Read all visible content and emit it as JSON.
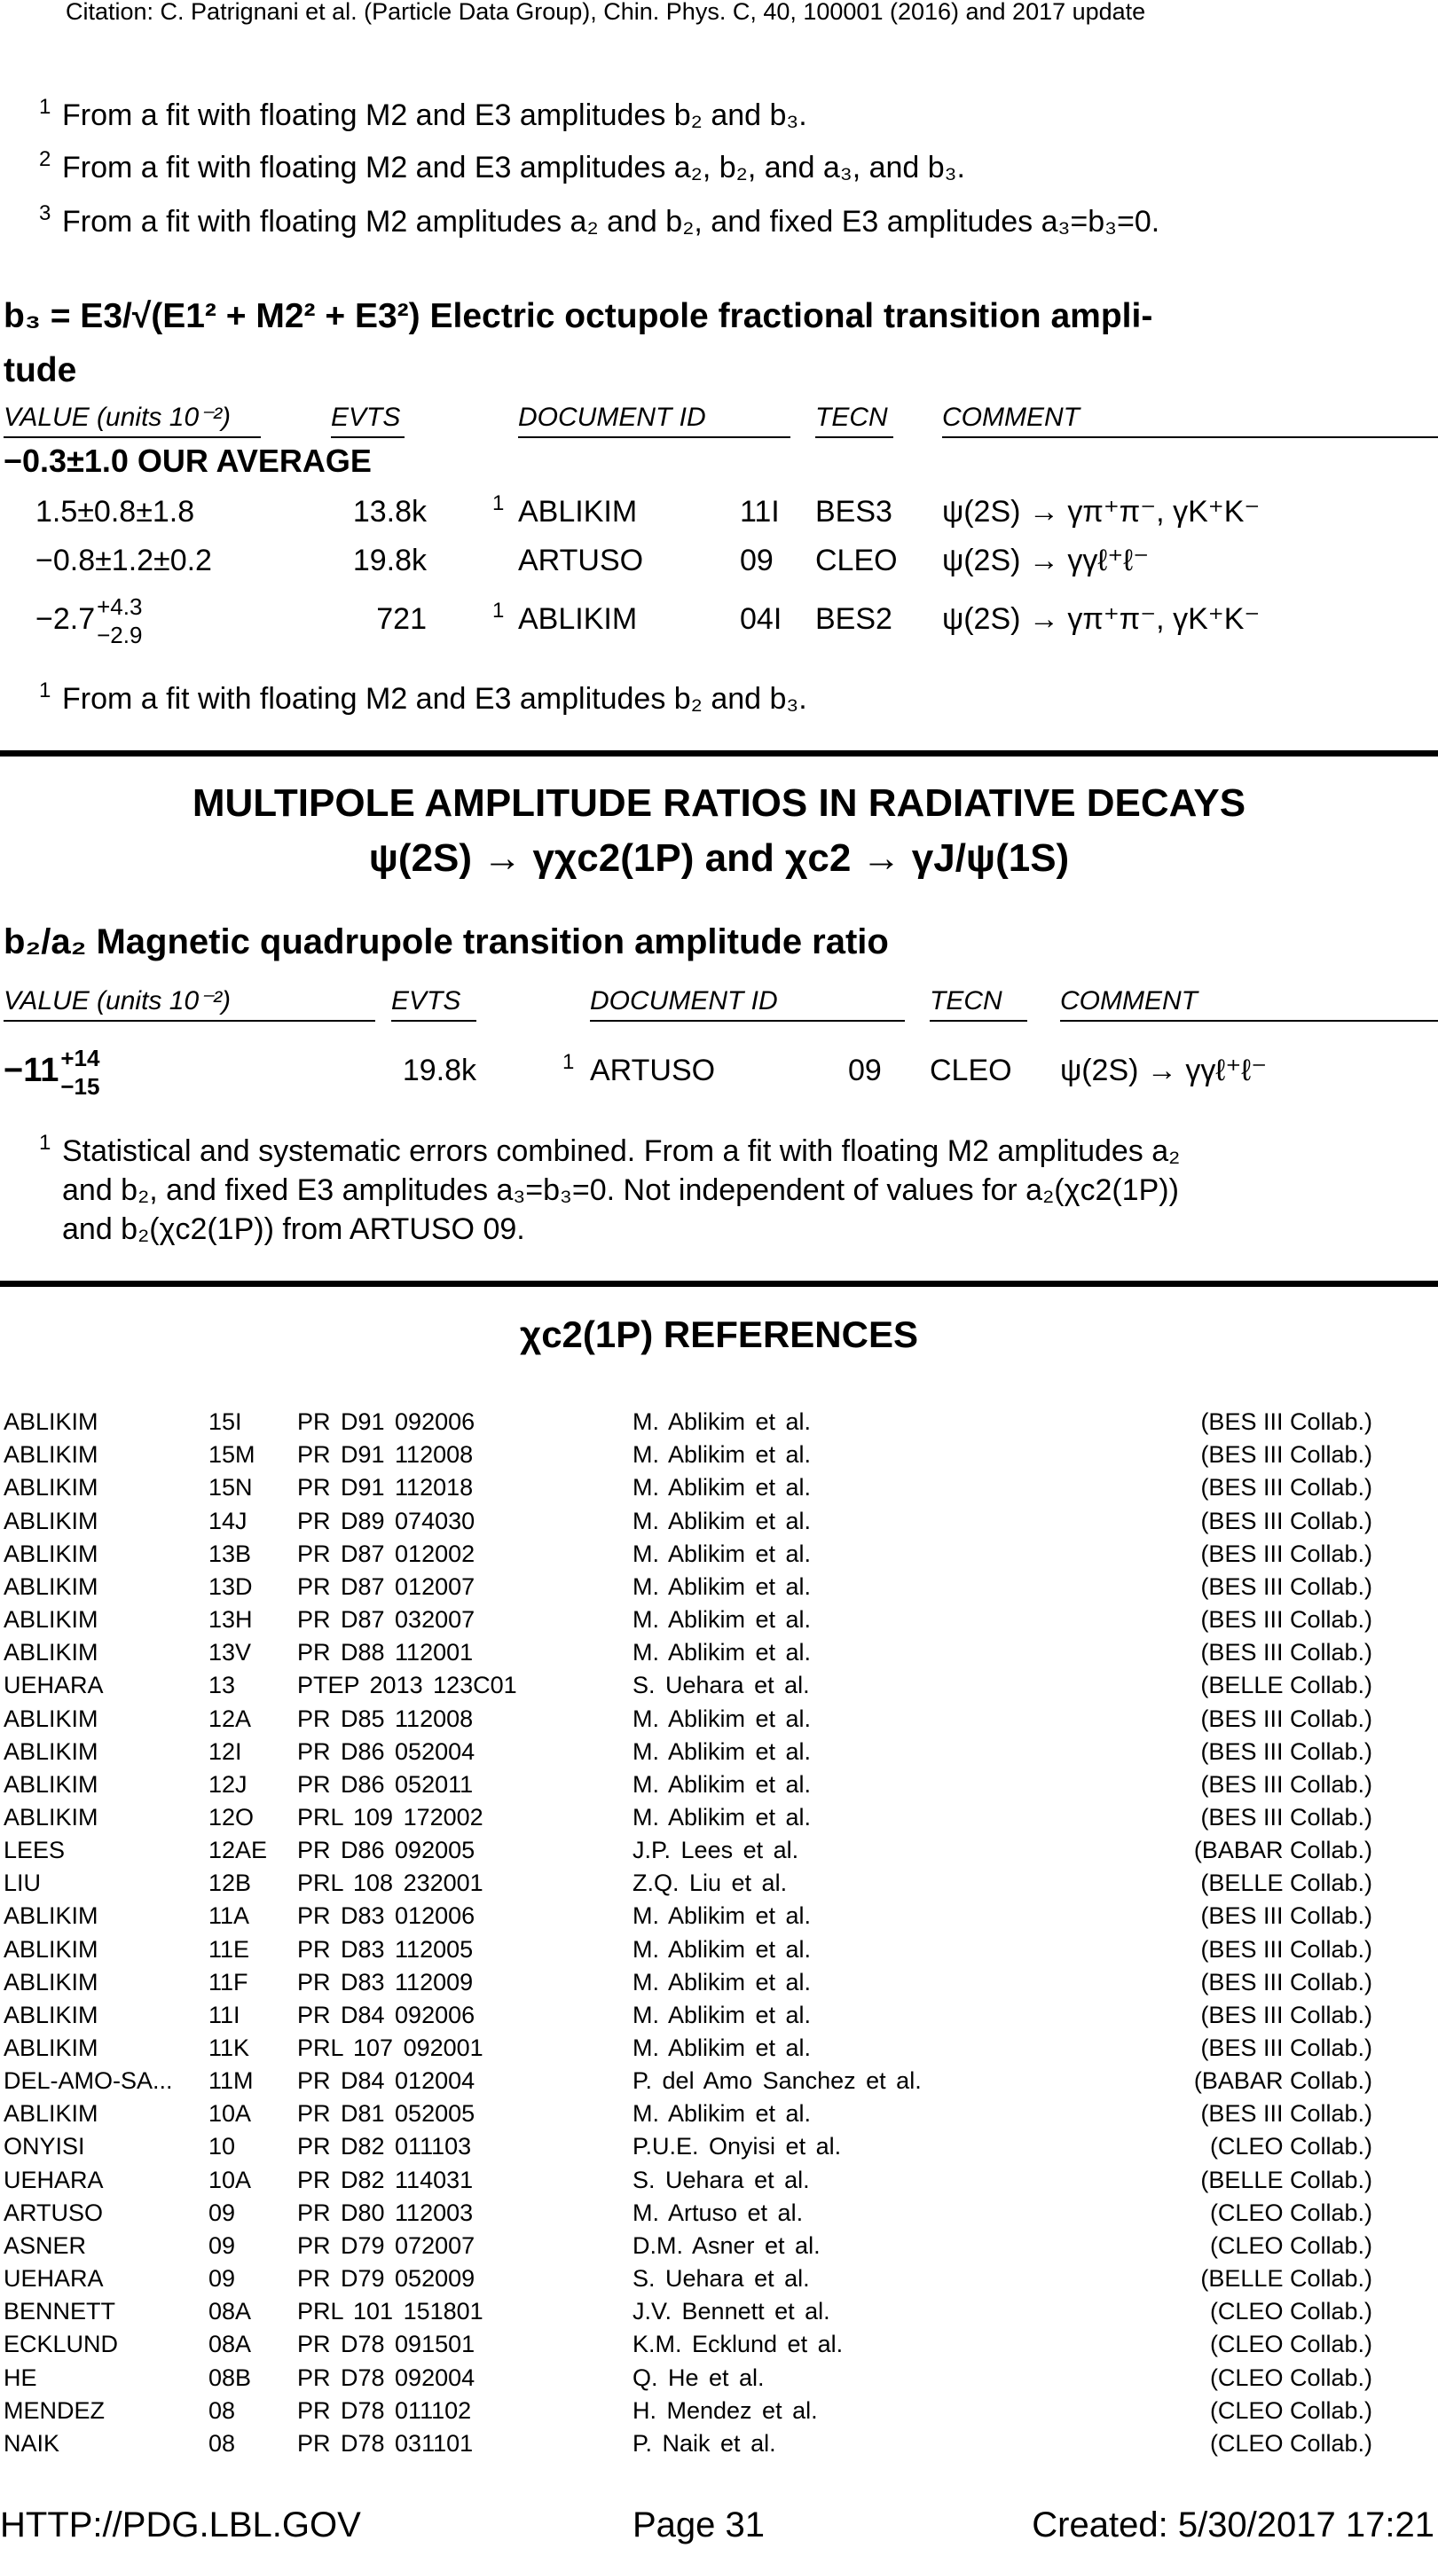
{
  "header": {
    "citation": "Citation: C. Patrignani et al. (Particle Data Group), Chin. Phys. C, 40, 100001 (2016) and 2017 update"
  },
  "top_footnotes": [
    {
      "mark": "1",
      "text": "From a fit with floating M2 and E3 amplitudes b₂ and b₃."
    },
    {
      "mark": "2",
      "text": "From a fit with floating M2 and E3 amplitudes a₂, b₂, and a₃, and b₃."
    },
    {
      "mark": "3",
      "text": "From a fit with floating M2 amplitudes a₂ and b₂, and fixed E3 amplitudes a₃=b₃=0."
    }
  ],
  "b3_section": {
    "title": "b₃ = E3/√(E1² + M2² + E3²) Electric octupole fractional transition ampli-",
    "title_cont": "tude",
    "columns": [
      "VALUE (units 10⁻²)",
      "EVTS",
      "DOCUMENT ID",
      "TECN",
      "COMMENT"
    ],
    "average": "−0.3±1.0 OUR AVERAGE",
    "rows": [
      {
        "value": "1.5±0.8±1.8",
        "evts": "13.8k",
        "note": "1",
        "document_id": "ABLIKIM",
        "year": "11I",
        "tecn": "BES3",
        "comment": "ψ(2S) →  γπ⁺π⁻, γK⁺K⁻"
      },
      {
        "value": "−0.8±1.2±0.2",
        "evts": "19.8k",
        "document_id": "ARTUSO",
        "year": "09",
        "tecn": "CLEO",
        "comment": "ψ(2S) →  γγℓ⁺ℓ⁻"
      },
      {
        "value": "−2.7",
        "plus": "+4.3",
        "minus": "−2.9",
        "evts": "721",
        "note": "1",
        "document_id": "ABLIKIM",
        "year": "04I",
        "tecn": "BES2",
        "comment": "ψ(2S) →  γπ⁺π⁻, γK⁺K⁻"
      }
    ],
    "footnote": {
      "mark": "1",
      "text": "From a fit with floating M2 and E3 amplitudes b₂ and b₃."
    }
  },
  "multipole": {
    "title_line1": "MULTIPOLE AMPLITUDE RATIOS IN RADIATIVE DECAYS",
    "title_line2": "ψ(2S) →  γχc2(1P) and χc2 →  γJ/ψ(1S)"
  },
  "b2a2_section": {
    "title": "b₂/a₂ Magnetic quadrupole transition amplitude ratio",
    "columns": [
      "VALUE (units 10⁻²)",
      "EVTS",
      "DOCUMENT ID",
      "TECN",
      "COMMENT"
    ],
    "rows": [
      {
        "value": "−11",
        "plus": "+14",
        "minus": "−15",
        "evts": "19.8k",
        "note": "1",
        "document_id": "ARTUSO",
        "year": "09",
        "tecn": "CLEO",
        "comment": "ψ(2S) →  γγℓ⁺ℓ⁻"
      }
    ],
    "footnote": {
      "mark": "1",
      "lines": [
        "Statistical and systematic errors combined.  From a fit with floating M2 amplitudes a₂",
        "and b₂, and fixed E3 amplitudes a₃=b₃=0.  Not independent of values for a₂(χc2(1P))",
        "and b₂(χc2(1P)) from ARTUSO 09."
      ]
    }
  },
  "references": {
    "title": "χc2(1P) REFERENCES",
    "rows": [
      [
        "ABLIKIM",
        "15I",
        "PR D91 092006",
        "M. Ablikim et al.",
        "(BES III Collab.)"
      ],
      [
        "ABLIKIM",
        "15M",
        "PR D91 112008",
        "M. Ablikim et al.",
        "(BES III Collab.)"
      ],
      [
        "ABLIKIM",
        "15N",
        "PR D91 112018",
        "M. Ablikim et al.",
        "(BES III Collab.)"
      ],
      [
        "ABLIKIM",
        "14J",
        "PR D89 074030",
        "M. Ablikim et al.",
        "(BES III Collab.)"
      ],
      [
        "ABLIKIM",
        "13B",
        "PR D87 012002",
        "M. Ablikim et al.",
        "(BES III Collab.)"
      ],
      [
        "ABLIKIM",
        "13D",
        "PR D87 012007",
        "M. Ablikim et al.",
        "(BES III Collab.)"
      ],
      [
        "ABLIKIM",
        "13H",
        "PR D87 032007",
        "M. Ablikim et al.",
        "(BES III Collab.)"
      ],
      [
        "ABLIKIM",
        "13V",
        "PR D88 112001",
        "M. Ablikim et al.",
        "(BES III Collab.)"
      ],
      [
        "UEHARA",
        "13",
        "PTEP 2013 123C01",
        "S. Uehara et al.",
        "(BELLE Collab.)"
      ],
      [
        "ABLIKIM",
        "12A",
        "PR D85 112008",
        "M. Ablikim et al.",
        "(BES III Collab.)"
      ],
      [
        "ABLIKIM",
        "12I",
        "PR D86 052004",
        "M. Ablikim et al.",
        "(BES III Collab.)"
      ],
      [
        "ABLIKIM",
        "12J",
        "PR D86 052011",
        "M. Ablikim et al.",
        "(BES III Collab.)"
      ],
      [
        "ABLIKIM",
        "12O",
        "PRL 109 172002",
        "M. Ablikim et al.",
        "(BES III Collab.)"
      ],
      [
        "LEES",
        "12AE",
        "PR D86 092005",
        "J.P. Lees et al.",
        "(BABAR Collab.)"
      ],
      [
        "LIU",
        "12B",
        "PRL 108 232001",
        "Z.Q. Liu et al.",
        "(BELLE Collab.)"
      ],
      [
        "ABLIKIM",
        "11A",
        "PR D83 012006",
        "M. Ablikim et al.",
        "(BES III Collab.)"
      ],
      [
        "ABLIKIM",
        "11E",
        "PR D83 112005",
        "M. Ablikim et al.",
        "(BES III Collab.)"
      ],
      [
        "ABLIKIM",
        "11F",
        "PR D83 112009",
        "M. Ablikim et al.",
        "(BES III Collab.)"
      ],
      [
        "ABLIKIM",
        "11I",
        "PR D84 092006",
        "M. Ablikim et al.",
        "(BES III Collab.)"
      ],
      [
        "ABLIKIM",
        "11K",
        "PRL 107 092001",
        "M. Ablikim et al.",
        "(BES III Collab.)"
      ],
      [
        "DEL-AMO-SA...",
        "11M",
        "PR D84 012004",
        "P. del Amo Sanchez et al.",
        "(BABAR Collab.)"
      ],
      [
        "ABLIKIM",
        "10A",
        "PR D81 052005",
        "M. Ablikim et al.",
        "(BES III Collab.)"
      ],
      [
        "ONYISI",
        "10",
        "PR D82 011103",
        "P.U.E. Onyisi et al.",
        "(CLEO Collab.)"
      ],
      [
        "UEHARA",
        "10A",
        "PR D82 114031",
        "S. Uehara et al.",
        "(BELLE Collab.)"
      ],
      [
        "ARTUSO",
        "09",
        "PR D80 112003",
        "M. Artuso et al.",
        "(CLEO Collab.)"
      ],
      [
        "ASNER",
        "09",
        "PR D79 072007",
        "D.M. Asner et al.",
        "(CLEO Collab.)"
      ],
      [
        "UEHARA",
        "09",
        "PR D79 052009",
        "S. Uehara et al.",
        "(BELLE Collab.)"
      ],
      [
        "BENNETT",
        "08A",
        "PRL 101 151801",
        "J.V. Bennett et al.",
        "(CLEO Collab.)"
      ],
      [
        "ECKLUND",
        "08A",
        "PR D78 091501",
        "K.M. Ecklund et al.",
        "(CLEO Collab.)"
      ],
      [
        "HE",
        "08B",
        "PR D78 092004",
        "Q. He et al.",
        "(CLEO Collab.)"
      ],
      [
        "MENDEZ",
        "08",
        "PR D78 011102",
        "H. Mendez et al.",
        "(CLEO Collab.)"
      ],
      [
        "NAIK",
        "08",
        "PR D78 031101",
        "P. Naik et al.",
        "(CLEO Collab.)"
      ]
    ]
  },
  "footer": {
    "url": "HTTP://PDG.LBL.GOV",
    "page": "Page 31",
    "created": "Created: 5/30/2017 17:21"
  }
}
